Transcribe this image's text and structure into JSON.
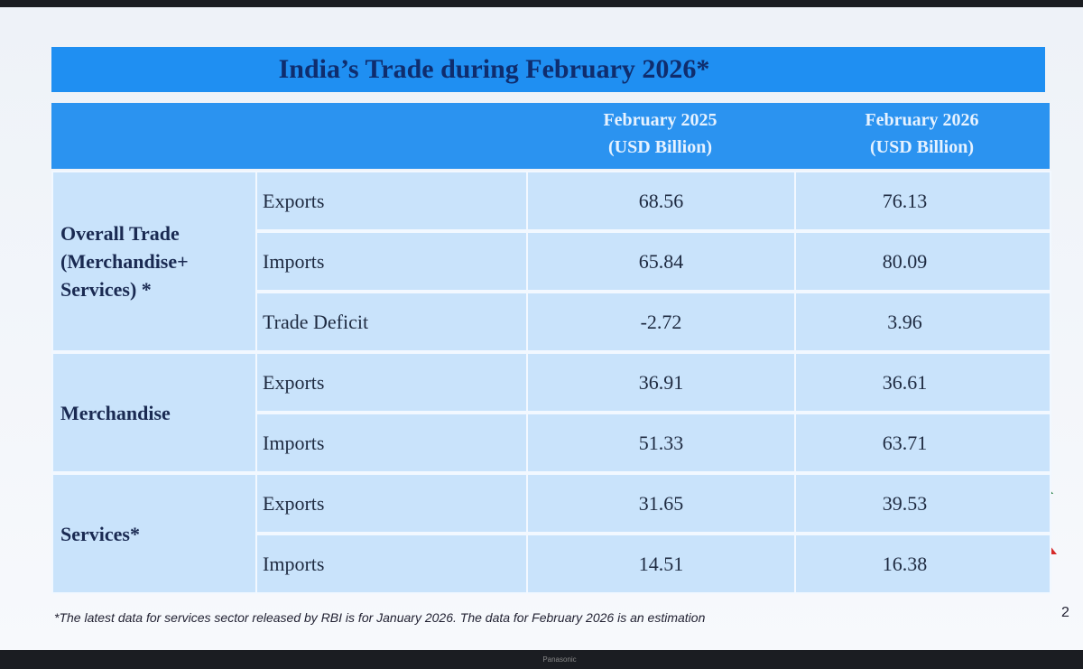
{
  "title": "India’s Trade during February 2026*",
  "columns": [
    {
      "lines": [
        "February 2025",
        "(USD Billion)"
      ]
    },
    {
      "lines": [
        "February 2026",
        "(USD Billion)"
      ]
    }
  ],
  "groups": [
    {
      "label_lines": [
        "Overall Trade",
        "(Merchandise+",
        "Services) *"
      ],
      "rows": [
        {
          "item": "Exports",
          "values": [
            68.56,
            76.13
          ]
        },
        {
          "item": "Imports",
          "values": [
            65.84,
            80.09
          ]
        },
        {
          "item": "Trade Deficit",
          "values": [
            -2.72,
            3.96
          ]
        }
      ]
    },
    {
      "label_lines": [
        "Merchandise"
      ],
      "rows": [
        {
          "item": "Exports",
          "values": [
            36.91,
            36.61
          ]
        },
        {
          "item": "Imports",
          "values": [
            51.33,
            63.71
          ]
        }
      ]
    },
    {
      "label_lines": [
        "Services*"
      ],
      "rows": [
        {
          "item": "Exports",
          "values": [
            31.65,
            39.53
          ]
        },
        {
          "item": "Imports",
          "values": [
            14.51,
            16.38
          ]
        }
      ]
    }
  ],
  "footnote": "*The latest data for services sector released by RBI is for January 2026. The data for February 2026 is an estimation",
  "page_number": "2",
  "brand": "Panasonic"
}
